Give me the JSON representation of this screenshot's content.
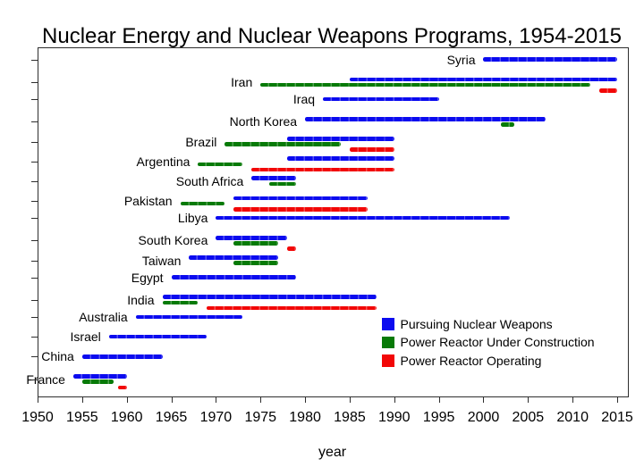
{
  "chart_data": {
    "type": "gantt-timeline",
    "title": "Nuclear Energy and Nuclear Weapons Programs, 1954-2015",
    "xlabel": "year",
    "xlim": [
      1950,
      2016.1
    ],
    "x_ticks": [
      1950,
      1955,
      1960,
      1965,
      1970,
      1975,
      1980,
      1985,
      1990,
      1995,
      2000,
      2005,
      2010,
      2015
    ],
    "grid": false,
    "legend_position": "inside-bottom-right",
    "legend": [
      {
        "key": "pursuing",
        "label": "Pursuing Nuclear Weapons",
        "color": "#0b0bef"
      },
      {
        "key": "construction",
        "label": "Power Reactor Under Construction",
        "color": "#077a07"
      },
      {
        "key": "operating",
        "label": "Power Reactor Operating",
        "color": "#f20707"
      }
    ],
    "countries": [
      {
        "name": "Syria",
        "bars": [
          {
            "type": "pursuing",
            "start": 2000,
            "end": 2015
          }
        ]
      },
      {
        "name": "Iran",
        "bars": [
          {
            "type": "pursuing",
            "start": 1985,
            "end": 2015
          },
          {
            "type": "construction",
            "start": 1975,
            "end": 2012
          },
          {
            "type": "operating",
            "start": 2013,
            "end": 2015
          }
        ]
      },
      {
        "name": "Iraq",
        "bars": [
          {
            "type": "pursuing",
            "start": 1982,
            "end": 1995
          }
        ]
      },
      {
        "name": "North Korea",
        "bars": [
          {
            "type": "pursuing",
            "start": 1980,
            "end": 2007
          },
          {
            "type": "construction",
            "start": 2002,
            "end": 2003.5
          }
        ]
      },
      {
        "name": "Brazil",
        "bars": [
          {
            "type": "pursuing",
            "start": 1978,
            "end": 1990
          },
          {
            "type": "construction",
            "start": 1971,
            "end": 1984
          },
          {
            "type": "operating",
            "start": 1985,
            "end": 1990
          }
        ]
      },
      {
        "name": "Argentina",
        "bars": [
          {
            "type": "pursuing",
            "start": 1978,
            "end": 1990
          },
          {
            "type": "construction",
            "start": 1968,
            "end": 1973
          },
          {
            "type": "operating",
            "start": 1974,
            "end": 1990
          }
        ]
      },
      {
        "name": "South Africa",
        "bars": [
          {
            "type": "pursuing",
            "start": 1974,
            "end": 1979
          },
          {
            "type": "construction",
            "start": 1976,
            "end": 1979
          }
        ]
      },
      {
        "name": "Pakistan",
        "bars": [
          {
            "type": "pursuing",
            "start": 1972,
            "end": 1987
          },
          {
            "type": "construction",
            "start": 1966,
            "end": 1971
          },
          {
            "type": "operating",
            "start": 1972,
            "end": 1987
          }
        ]
      },
      {
        "name": "Libya",
        "bars": [
          {
            "type": "pursuing",
            "start": 1970,
            "end": 2003
          }
        ]
      },
      {
        "name": "South Korea",
        "bars": [
          {
            "type": "pursuing",
            "start": 1970,
            "end": 1978
          },
          {
            "type": "construction",
            "start": 1972,
            "end": 1977
          },
          {
            "type": "operating",
            "start": 1978,
            "end": 1979
          }
        ]
      },
      {
        "name": "Taiwan",
        "bars": [
          {
            "type": "pursuing",
            "start": 1967,
            "end": 1977
          },
          {
            "type": "construction",
            "start": 1972,
            "end": 1977
          }
        ]
      },
      {
        "name": "Egypt",
        "bars": [
          {
            "type": "pursuing",
            "start": 1965,
            "end": 1979
          }
        ]
      },
      {
        "name": "India",
        "bars": [
          {
            "type": "pursuing",
            "start": 1964,
            "end": 1988
          },
          {
            "type": "construction",
            "start": 1964,
            "end": 1968
          },
          {
            "type": "operating",
            "start": 1969,
            "end": 1988
          }
        ]
      },
      {
        "name": "Australia",
        "bars": [
          {
            "type": "pursuing",
            "start": 1961,
            "end": 1973
          }
        ]
      },
      {
        "name": "Israel",
        "bars": [
          {
            "type": "pursuing",
            "start": 1958,
            "end": 1969
          }
        ]
      },
      {
        "name": "China",
        "bars": [
          {
            "type": "pursuing",
            "start": 1955,
            "end": 1964
          }
        ]
      },
      {
        "name": "France",
        "bars": [
          {
            "type": "pursuing",
            "start": 1954,
            "end": 1960
          },
          {
            "type": "construction",
            "start": 1955,
            "end": 1958.5
          },
          {
            "type": "operating",
            "start": 1959,
            "end": 1960
          }
        ]
      }
    ]
  }
}
